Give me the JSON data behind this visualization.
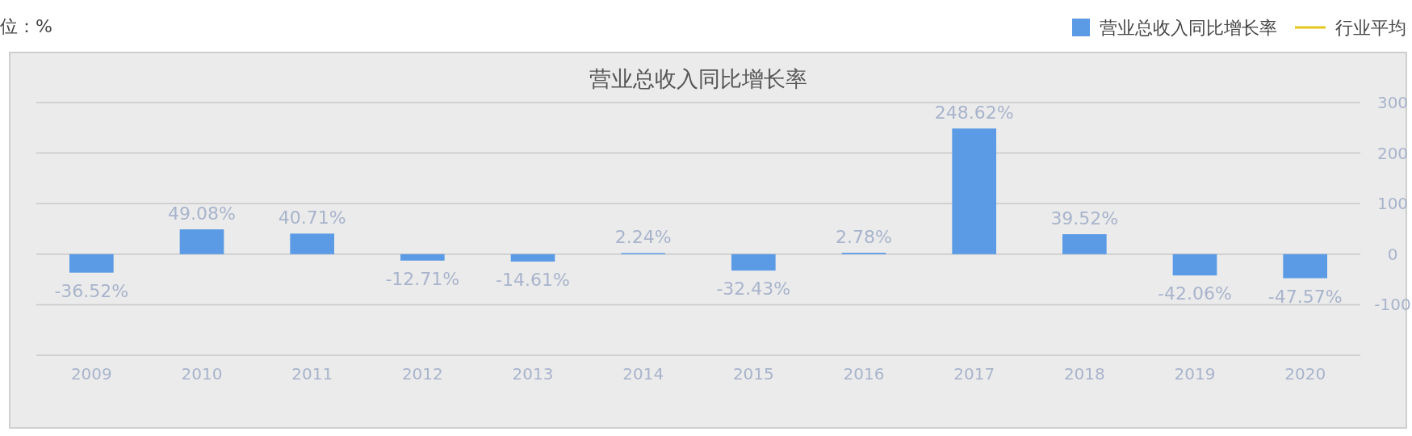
{
  "chart_data": {
    "type": "bar",
    "title": "营业总收入同比增长率",
    "annotations": [
      "位：%"
    ],
    "categories": [
      "2009",
      "2010",
      "2011",
      "2012",
      "2013",
      "2014",
      "2015",
      "2016",
      "2017",
      "2018",
      "2019",
      "2020"
    ],
    "series": [
      {
        "name": "营业总收入同比增长率",
        "color": "#5b9be6",
        "values": [
          -36.52,
          49.08,
          40.71,
          -12.71,
          -14.61,
          2.24,
          -32.43,
          2.78,
          248.62,
          39.52,
          -42.06,
          -47.57
        ],
        "value_labels": [
          "-36.52%",
          "49.08%",
          "40.71%",
          "-12.71%",
          "-14.61%",
          "2.24%",
          "-32.43%",
          "2.78%",
          "248.62%",
          "39.52%",
          "-42.06%",
          "-47.57%"
        ]
      },
      {
        "name": "行业平均",
        "type": "line",
        "color": "#e6c619",
        "values": [
          null,
          null,
          null,
          null,
          null,
          null,
          null,
          null,
          null,
          null,
          null,
          null
        ]
      }
    ],
    "ylim": [
      -200,
      300
    ],
    "yticks": [
      {
        "value": -200,
        "label": null
      },
      -100,
      0,
      100,
      200,
      300
    ],
    "grid": "y",
    "legend": "top right"
  }
}
